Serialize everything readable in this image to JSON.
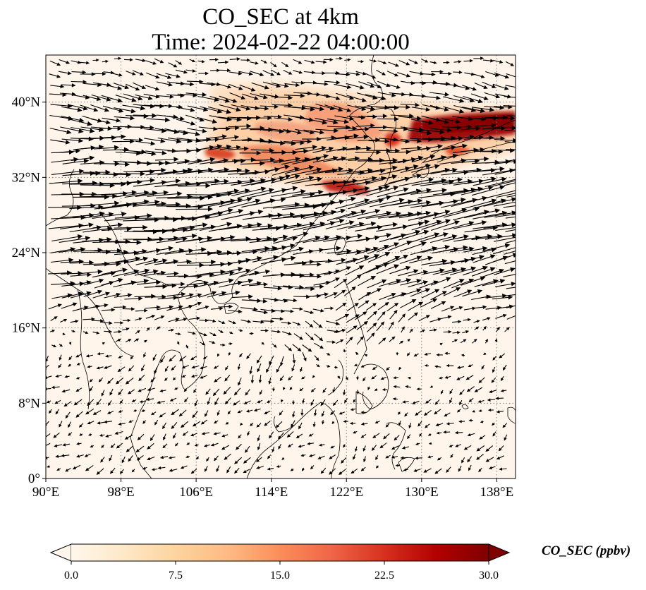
{
  "header": {
    "title_line1": "CO_SEC at 4km",
    "title_line2": "Time: 2024-02-22 04:00:00"
  },
  "map": {
    "lon_range": [
      90,
      140
    ],
    "lat_range": [
      0,
      45
    ],
    "lon_ticks": [
      90,
      98,
      106,
      114,
      122,
      130,
      138
    ],
    "lat_ticks": [
      0,
      8,
      16,
      24,
      32,
      40
    ],
    "lon_tick_labels": [
      "90°E",
      "98°E",
      "106°E",
      "114°E",
      "122°E",
      "130°E",
      "138°E"
    ],
    "lat_tick_labels": [
      "0°",
      "8°N",
      "16°N",
      "24°N",
      "32°N",
      "40°N"
    ],
    "gridlines": true,
    "overlay": "wind-vector-arrows",
    "colors": {
      "background": "#fff5eb",
      "coastline": "#000000",
      "arrows": "#000000"
    }
  },
  "colorbar": {
    "label": "CO_SEC (ppbv)",
    "min": 0,
    "max": 30,
    "ticks": [
      0.0,
      7.5,
      15.0,
      22.5,
      30.0
    ],
    "tick_labels": [
      "0.0",
      "7.5",
      "15.0",
      "22.5",
      "30.0"
    ],
    "colormap": "OrRd",
    "extend": "both",
    "colors": [
      "#fff7ec",
      "#fee8c8",
      "#fdd49e",
      "#fdbb84",
      "#fc8d59",
      "#ef6548",
      "#d7301f",
      "#b30000",
      "#7f0000"
    ]
  }
}
